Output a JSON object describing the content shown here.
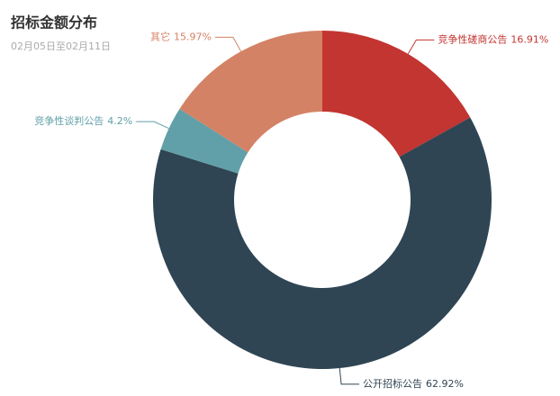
{
  "chart_data": {
    "type": "pie",
    "title": "招标金额分布",
    "subtitle": "02月05日至02月11日",
    "categories": [
      "竞争性磋商公告",
      "公开招标公告",
      "竞争性谈判公告",
      "其它"
    ],
    "values": [
      16.91,
      62.92,
      4.2,
      15.97
    ],
    "value_labels": [
      "16.91%",
      "62.92%",
      "4.2%",
      "15.97%"
    ],
    "colors": [
      "#c23531",
      "#2f4554",
      "#61a0a8",
      "#d48265"
    ]
  }
}
